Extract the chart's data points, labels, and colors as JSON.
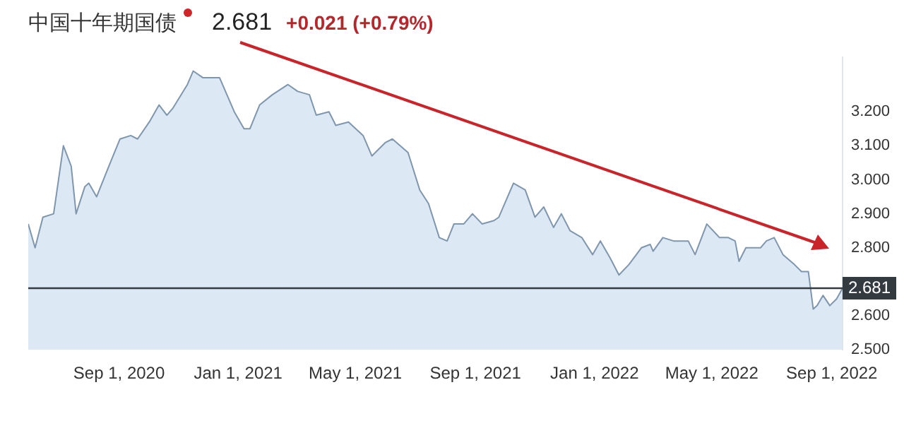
{
  "chart_data": {
    "type": "area",
    "title": "中国十年期国债",
    "subtitle": "2.681",
    "annotations": [
      "+0.021 (+0.79%)"
    ],
    "x": [
      "2020-05-31",
      "2020-06-07",
      "2020-06-15",
      "2020-06-26",
      "2020-07-06",
      "2020-07-14",
      "2020-07-19",
      "2020-07-28",
      "2020-08-01",
      "2020-08-09",
      "2020-08-23",
      "2020-09-02",
      "2020-09-13",
      "2020-09-20",
      "2020-10-02",
      "2020-10-12",
      "2020-10-20",
      "2020-10-26",
      "2020-11-10",
      "2020-11-16",
      "2020-11-26",
      "2020-12-13",
      "2020-12-28",
      "2021-01-07",
      "2021-01-13",
      "2021-01-23",
      "2021-02-05",
      "2021-02-21",
      "2021-03-03",
      "2021-03-15",
      "2021-03-22",
      "2021-04-04",
      "2021-04-11",
      "2021-04-24",
      "2021-05-09",
      "2021-05-18",
      "2021-06-01",
      "2021-06-08",
      "2021-06-24",
      "2021-07-06",
      "2021-07-15",
      "2021-07-26",
      "2021-08-03",
      "2021-08-10",
      "2021-08-20",
      "2021-08-29",
      "2021-09-08",
      "2021-09-20",
      "2021-09-25",
      "2021-10-10",
      "2021-10-22",
      "2021-11-01",
      "2021-11-10",
      "2021-11-20",
      "2021-11-28",
      "2021-12-07",
      "2021-12-19",
      "2021-12-30",
      "2022-01-07",
      "2022-01-17",
      "2022-01-26",
      "2022-02-05",
      "2022-02-18",
      "2022-02-27",
      "2022-03-02",
      "2022-03-12",
      "2022-03-23",
      "2022-03-31",
      "2022-04-07",
      "2022-04-14",
      "2022-04-26",
      "2022-05-09",
      "2022-05-18",
      "2022-05-25",
      "2022-05-29",
      "2022-06-05",
      "2022-06-11",
      "2022-06-20",
      "2022-06-26",
      "2022-07-04",
      "2022-07-13",
      "2022-07-25",
      "2022-08-01",
      "2022-08-08",
      "2022-08-13",
      "2022-08-17",
      "2022-08-23",
      "2022-08-30",
      "2022-09-06",
      "2022-09-12"
    ],
    "series": [
      {
        "color": "#7f96ad",
        "values": [
          2.87,
          2.8,
          2.89,
          2.9,
          3.1,
          3.04,
          2.9,
          2.98,
          2.99,
          2.95,
          3.05,
          3.12,
          3.13,
          3.12,
          3.17,
          3.22,
          3.19,
          3.21,
          3.28,
          3.32,
          3.3,
          3.3,
          3.2,
          3.15,
          3.15,
          3.22,
          3.25,
          3.28,
          3.26,
          3.25,
          3.19,
          3.2,
          3.16,
          3.17,
          3.13,
          3.07,
          3.11,
          3.12,
          3.08,
          2.97,
          2.93,
          2.83,
          2.82,
          2.87,
          2.87,
          2.9,
          2.87,
          2.88,
          2.89,
          2.99,
          2.97,
          2.89,
          2.92,
          2.86,
          2.9,
          2.85,
          2.83,
          2.78,
          2.82,
          2.77,
          2.72,
          2.75,
          2.8,
          2.81,
          2.79,
          2.83,
          2.82,
          2.82,
          2.82,
          2.78,
          2.87,
          2.83,
          2.83,
          2.82,
          2.76,
          2.8,
          2.8,
          2.8,
          2.82,
          2.83,
          2.78,
          2.75,
          2.73,
          2.73,
          2.62,
          2.63,
          2.66,
          2.63,
          2.65,
          2.681
        ]
      }
    ],
    "xlim": [
      "2020-05-31",
      "2022-09-12"
    ],
    "xticks": [
      {
        "value": "2020-09-01",
        "label": "Sep 1, 2020"
      },
      {
        "value": "2021-01-01",
        "label": "Jan 1, 2021"
      },
      {
        "value": "2021-05-01",
        "label": "May 1, 2021"
      },
      {
        "value": "2021-09-01",
        "label": "Sep 1, 2021"
      },
      {
        "value": "2022-01-01",
        "label": "Jan 1, 2022"
      },
      {
        "value": "2022-05-01",
        "label": "May 1, 2022"
      },
      {
        "value": "2022-09-01",
        "label": "Sep 1, 2022"
      }
    ],
    "ylim": [
      2.5,
      3.36
    ],
    "yticks": [
      {
        "value": 2.5,
        "label": "2.500"
      },
      {
        "value": 2.6,
        "label": "2.600"
      },
      {
        "value": 2.8,
        "label": "2.800"
      },
      {
        "value": 2.9,
        "label": "2.900"
      },
      {
        "value": 3.0,
        "label": "3.000"
      },
      {
        "value": 3.1,
        "label": "3.100"
      },
      {
        "value": 3.2,
        "label": "3.200"
      }
    ],
    "ref_lines": [
      {
        "axis": "y",
        "value": 2.681,
        "label": "2.681",
        "color": "#333a40"
      }
    ]
  }
}
